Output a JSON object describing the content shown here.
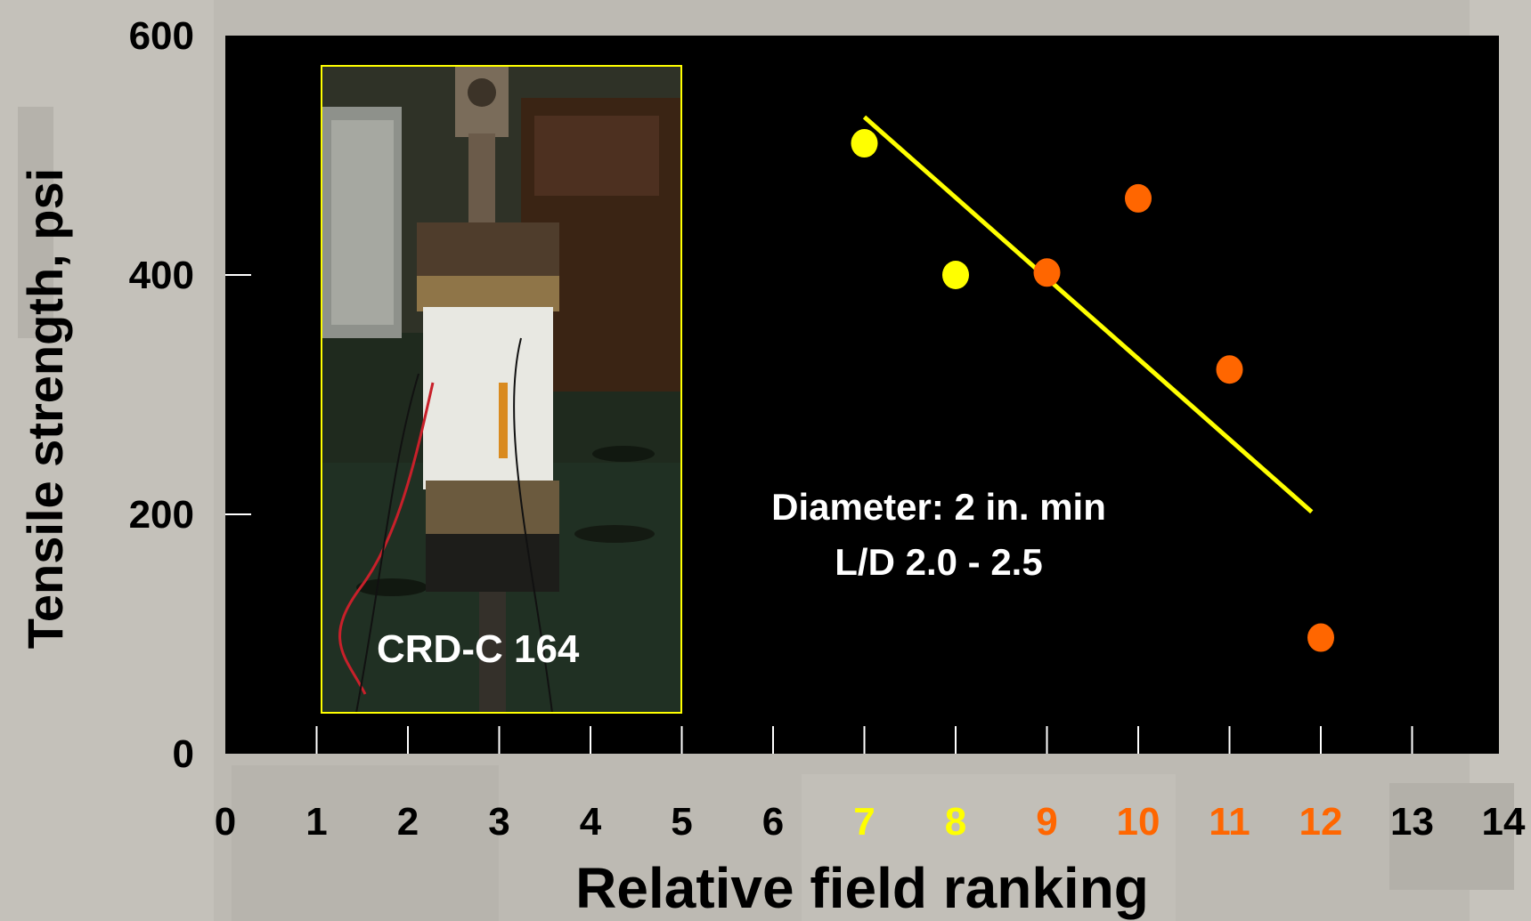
{
  "chart_data": {
    "type": "scatter",
    "xlabel": "Relative field ranking",
    "ylabel": "Tensile strength, psi",
    "xlim": [
      0,
      14
    ],
    "ylim": [
      0,
      600
    ],
    "x_ticks": [
      {
        "label": "0",
        "color": "#000000"
      },
      {
        "label": "1",
        "color": "#000000"
      },
      {
        "label": "2",
        "color": "#000000"
      },
      {
        "label": "3",
        "color": "#000000"
      },
      {
        "label": "4",
        "color": "#000000"
      },
      {
        "label": "5",
        "color": "#000000"
      },
      {
        "label": "6",
        "color": "#000000"
      },
      {
        "label": "7",
        "color": "#ffff00"
      },
      {
        "label": "8",
        "color": "#ffff00"
      },
      {
        "label": "9",
        "color": "#ff6600"
      },
      {
        "label": "10",
        "color": "#ff6600"
      },
      {
        "label": "11",
        "color": "#ff6600"
      },
      {
        "label": "12",
        "color": "#ff6600"
      },
      {
        "label": "13",
        "color": "#000000"
      },
      {
        "label": "14",
        "color": "#000000"
      }
    ],
    "y_ticks": [
      "0",
      "200",
      "400",
      "600"
    ],
    "points": [
      {
        "x": 7,
        "y": 510,
        "color": "#ffff00"
      },
      {
        "x": 8,
        "y": 400,
        "color": "#ffff00"
      },
      {
        "x": 9,
        "y": 402,
        "color": "#ff6600"
      },
      {
        "x": 10,
        "y": 464,
        "color": "#ff6600"
      },
      {
        "x": 11,
        "y": 321,
        "color": "#ff6600"
      },
      {
        "x": 12,
        "y": 97,
        "color": "#ff6600"
      }
    ],
    "trend_line": {
      "color": "#ffff00",
      "points": [
        [
          7,
          532
        ],
        [
          11.9,
          202
        ]
      ]
    },
    "annotation": [
      "Diameter: 2 in. min",
      "L/D 2.0 - 2.5"
    ],
    "inset_photo": {
      "label": "CRD-C 164",
      "border_color": "#ffff00"
    },
    "colors": {
      "plot_background": "#000000",
      "text": "#000000",
      "inner_text": "#ffffff"
    }
  }
}
